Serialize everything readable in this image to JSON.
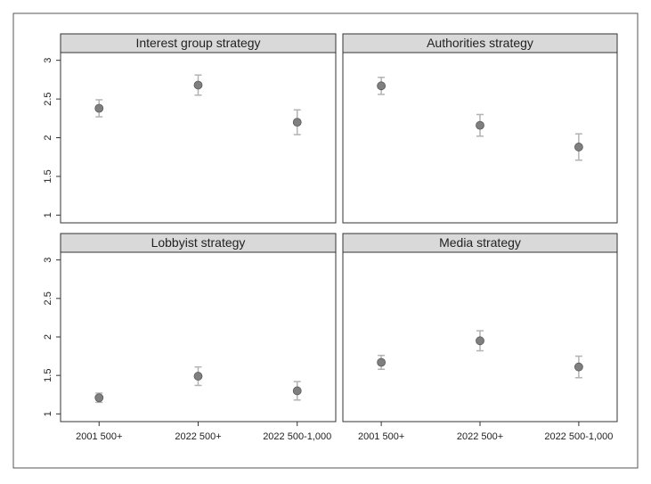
{
  "chart_data": {
    "type": "scatter",
    "categories": [
      "2001 500+",
      "2022 500+",
      "2022 500-1,000"
    ],
    "ylim": [
      0.9,
      3.1
    ],
    "yticks": [
      1,
      1.5,
      2,
      2.5,
      3
    ],
    "marker_color": "#7f7f7f",
    "error_color": "#b3b3b3",
    "panels": [
      {
        "title": "Interest group strategy",
        "values": [
          2.38,
          2.68,
          2.2
        ],
        "errors": [
          0.11,
          0.13,
          0.16
        ]
      },
      {
        "title": "Authorities strategy",
        "values": [
          2.67,
          2.16,
          1.88
        ],
        "errors": [
          0.11,
          0.14,
          0.17
        ]
      },
      {
        "title": "Lobbyist strategy",
        "values": [
          1.21,
          1.49,
          1.3
        ],
        "errors": [
          0.06,
          0.12,
          0.12
        ]
      },
      {
        "title": "Media strategy",
        "values": [
          1.67,
          1.95,
          1.61
        ],
        "errors": [
          0.09,
          0.13,
          0.14
        ]
      }
    ]
  }
}
